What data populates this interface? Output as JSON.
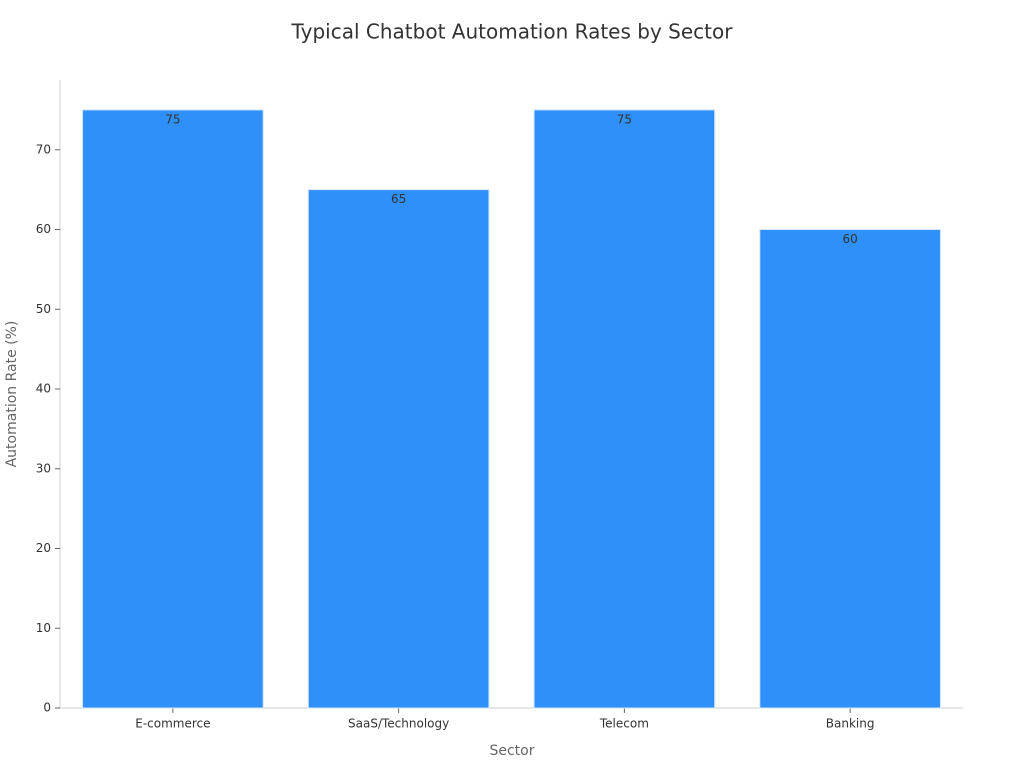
{
  "chart_data": {
    "type": "bar",
    "title": "Typical Chatbot Automation Rates by Sector",
    "x_label": "Sector",
    "y_label": "Automation Rate (%)",
    "categories": [
      "E-commerce",
      "SaaS/Technology",
      "Telecom",
      "Banking"
    ],
    "values": [
      75,
      65,
      75,
      60
    ],
    "color": "#2e90f8",
    "ylim": [
      0,
      78.75
    ],
    "yticks": [
      0,
      10,
      20,
      30,
      40,
      50,
      60,
      70
    ],
    "grid": false
  }
}
